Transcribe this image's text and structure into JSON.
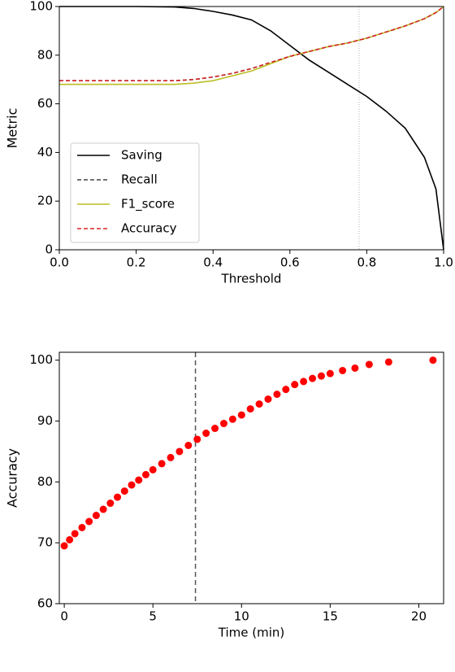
{
  "chart_data": [
    {
      "type": "line",
      "xlabel": "Threshold",
      "ylabel": "Metric",
      "x": [
        0,
        0.1,
        0.2,
        0.3,
        0.35,
        0.4,
        0.45,
        0.5,
        0.55,
        0.6,
        0.65,
        0.7,
        0.75,
        0.8,
        0.85,
        0.9,
        0.95,
        0.98,
        1.0
      ],
      "series": [
        {
          "name": "Saving",
          "color": "#000000",
          "style": "solid",
          "values": [
            100,
            100,
            100,
            99.8,
            99.2,
            98,
            96.5,
            94.5,
            90,
            84,
            78,
            73,
            68,
            63,
            57,
            50,
            38,
            25,
            0
          ]
        },
        {
          "name": "Recall",
          "color": "#444444",
          "style": "dashed",
          "values": [
            69.5,
            69.5,
            69.5,
            69.5,
            70,
            71,
            72.5,
            74.5,
            77,
            79.5,
            81.5,
            83.5,
            85,
            87,
            89.5,
            92,
            95,
            97.5,
            100
          ]
        },
        {
          "name": "F1_score",
          "color": "#bcbd22",
          "style": "solid",
          "values": [
            68,
            68,
            68,
            68,
            68.5,
            69.5,
            71.5,
            73.5,
            76.5,
            79.5,
            81.5,
            83.5,
            85,
            87,
            89.5,
            92,
            95,
            97.5,
            100
          ]
        },
        {
          "name": "Accuracy",
          "color": "#d62728",
          "style": "dashed",
          "values": [
            69.5,
            69.5,
            69.5,
            69.5,
            70,
            71,
            72.5,
            74.5,
            77,
            79.5,
            81.5,
            83.5,
            85,
            87,
            89.5,
            92,
            95,
            97.5,
            100
          ]
        }
      ],
      "vline": 0.78,
      "vline_color": "#cccccc",
      "xlim": [
        0,
        1
      ],
      "ylim": [
        0,
        100
      ],
      "xticks": [
        {
          "value": 0,
          "label": "0.0"
        },
        {
          "value": 0.2,
          "label": "0.2"
        },
        {
          "value": 0.4,
          "label": "0.4"
        },
        {
          "value": 0.6,
          "label": "0.6"
        },
        {
          "value": 0.8,
          "label": "0.8"
        },
        {
          "value": 1,
          "label": "1.0"
        }
      ],
      "yticks": [
        0,
        20,
        40,
        60,
        80,
        100
      ],
      "legend": "lower left"
    },
    {
      "type": "scatter",
      "xlabel": "Time (min)",
      "ylabel": "Accuracy",
      "color": "#ff0000",
      "x": [
        0,
        0.3,
        0.6,
        1,
        1.4,
        1.8,
        2.2,
        2.6,
        3,
        3.4,
        3.8,
        4.2,
        4.6,
        5,
        5.5,
        6,
        6.5,
        7,
        7.5,
        8,
        8.5,
        9,
        9.5,
        10,
        10.5,
        11,
        11.5,
        12,
        12.5,
        13,
        13.5,
        14,
        14.5,
        15,
        15.7,
        16.4,
        17.2,
        18.3,
        20.8
      ],
      "values": [
        69.5,
        70.5,
        71.5,
        72.5,
        73.5,
        74.5,
        75.5,
        76.5,
        77.5,
        78.5,
        79.5,
        80.3,
        81.2,
        82,
        83,
        84,
        85,
        86,
        87,
        88,
        88.8,
        89.6,
        90.3,
        91,
        92,
        92.8,
        93.6,
        94.4,
        95.2,
        96,
        96.5,
        97,
        97.4,
        97.8,
        98.3,
        98.7,
        99.3,
        99.7,
        100
      ],
      "vline": 7.4,
      "vline_color": "#555555",
      "xlim": [
        -0.28,
        21.4
      ],
      "ylim": [
        60,
        101.3
      ],
      "xticks": [
        0,
        5,
        10,
        15,
        20
      ],
      "yticks": [
        60,
        70,
        80,
        90,
        100
      ]
    }
  ]
}
